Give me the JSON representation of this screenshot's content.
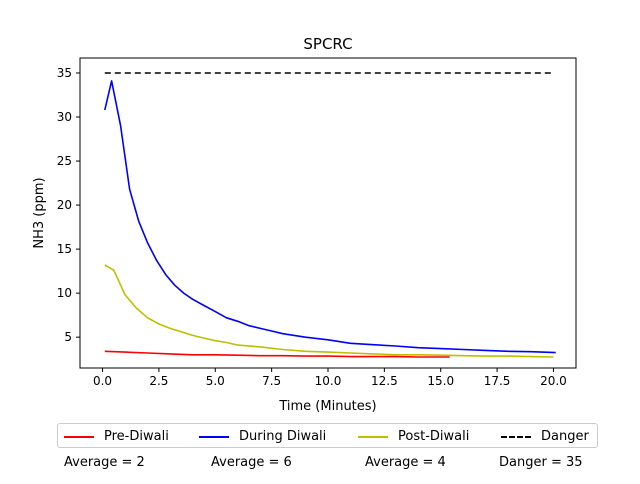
{
  "chart_data": {
    "type": "line",
    "title": "SPCRC",
    "xlabel": "Time (Minutes)",
    "ylabel": "NH3 (ppm)",
    "xlim": [
      -1.0,
      21.0
    ],
    "ylim": [
      1.5,
      36.7
    ],
    "xticks": [
      0.0,
      2.5,
      5.0,
      7.5,
      10.0,
      12.5,
      15.0,
      17.5,
      20.0
    ],
    "xtick_labels": [
      "0.0",
      "2.5",
      "5.0",
      "7.5",
      "10.0",
      "12.5",
      "15.0",
      "17.5",
      "20.0"
    ],
    "yticks": [
      5,
      10,
      15,
      20,
      25,
      30,
      35
    ],
    "ytick_labels": [
      "5",
      "10",
      "15",
      "20",
      "25",
      "30",
      "35"
    ],
    "grid": false,
    "legend_position": "bottom",
    "series": [
      {
        "name": "Pre-Diwali",
        "color": "#ff0000",
        "dashed": false,
        "x": [
          0.1,
          1,
          2,
          3,
          4,
          5,
          6,
          7,
          8,
          9,
          10,
          11,
          12,
          13,
          14,
          15,
          15.4
        ],
        "y": [
          3.4,
          3.3,
          3.2,
          3.1,
          3.0,
          3.0,
          2.95,
          2.9,
          2.9,
          2.85,
          2.85,
          2.8,
          2.8,
          2.8,
          2.75,
          2.75,
          2.75
        ]
      },
      {
        "name": "During Diwali",
        "color": "#0000ff",
        "dashed": false,
        "x": [
          0.1,
          0.4,
          0.8,
          1.2,
          1.6,
          2.0,
          2.4,
          2.8,
          3.2,
          3.6,
          4.0,
          4.5,
          5.0,
          5.5,
          6.0,
          6.5,
          7.0,
          7.5,
          8.0,
          9.0,
          10.0,
          11.0,
          12.0,
          13.0,
          14.0,
          15.0,
          16.0,
          17.0,
          18.0,
          19.0,
          20.1
        ],
        "y": [
          30.8,
          34.1,
          29.0,
          21.8,
          18.2,
          15.7,
          13.7,
          12.1,
          10.9,
          10.0,
          9.3,
          8.6,
          7.9,
          7.2,
          6.8,
          6.3,
          6.0,
          5.7,
          5.4,
          5.0,
          4.7,
          4.3,
          4.15,
          4.0,
          3.8,
          3.7,
          3.6,
          3.5,
          3.4,
          3.35,
          3.25
        ]
      },
      {
        "name": "Post-Diwali",
        "color": "#bfbf00",
        "dashed": false,
        "x": [
          0.1,
          0.5,
          1.0,
          1.5,
          2.0,
          2.5,
          3.0,
          3.5,
          4.0,
          4.5,
          5.0,
          5.5,
          6.0,
          7.0,
          8.0,
          9.0,
          10.0,
          11.0,
          12.0,
          13.0,
          14.0,
          15.0,
          16.0,
          17.0,
          18.0,
          19.0,
          20.0
        ],
        "y": [
          13.2,
          12.6,
          9.8,
          8.3,
          7.2,
          6.5,
          6.0,
          5.6,
          5.2,
          4.9,
          4.6,
          4.4,
          4.1,
          3.9,
          3.6,
          3.4,
          3.3,
          3.2,
          3.1,
          3.0,
          3.0,
          2.95,
          2.9,
          2.85,
          2.85,
          2.8,
          2.75
        ]
      },
      {
        "name": "Danger",
        "color": "#000000",
        "dashed": true,
        "x": [
          0.1,
          20.0
        ],
        "y": [
          35,
          35
        ]
      }
    ],
    "footer": [
      "Average = 2",
      "Average = 6",
      "Average = 4",
      "Danger = 35"
    ]
  }
}
